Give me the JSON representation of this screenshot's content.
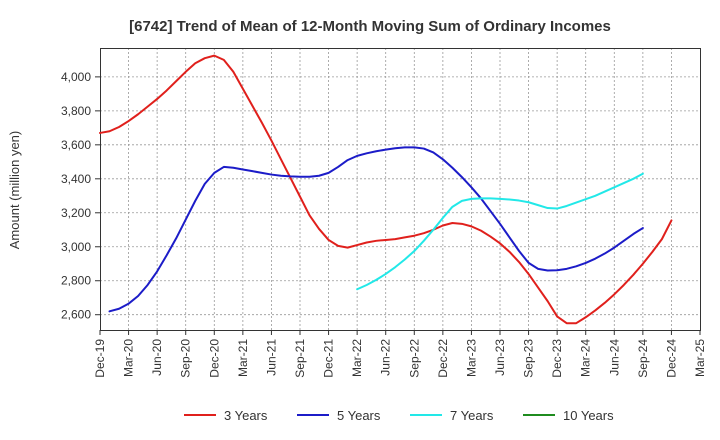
{
  "chart_data": {
    "type": "line",
    "title": "[6742]  Trend of Mean of 12-Month Moving Sum of Ordinary Incomes",
    "xlabel": "",
    "ylabel": "Amount (million yen)",
    "ylim": [
      2510,
      4170
    ],
    "yticks": [
      2600,
      2800,
      3000,
      3200,
      3400,
      3600,
      3800,
      4000
    ],
    "ytick_labels": [
      "2,600",
      "2,800",
      "3,000",
      "3,200",
      "3,400",
      "3,600",
      "3,800",
      "4,000"
    ],
    "xticks": [
      "Dec-19",
      "Mar-20",
      "Jun-20",
      "Sep-20",
      "Dec-20",
      "Mar-21",
      "Jun-21",
      "Sep-21",
      "Dec-21",
      "Mar-22",
      "Jun-22",
      "Sep-22",
      "Dec-22",
      "Mar-23",
      "Jun-23",
      "Sep-23",
      "Dec-23",
      "Mar-24",
      "Jun-24",
      "Sep-24",
      "Dec-24",
      "Mar-25"
    ],
    "grid": true,
    "legend_position": "bottom",
    "series": [
      {
        "name": "3 Years",
        "color": "#e0201c",
        "start_month": 0,
        "values": [
          3670,
          3680,
          3705,
          3740,
          3780,
          3825,
          3870,
          3920,
          3975,
          4030,
          4080,
          4110,
          4125,
          4100,
          4030,
          3930,
          3830,
          3730,
          3625,
          3515,
          3405,
          3295,
          3185,
          3105,
          3040,
          3005,
          2995,
          3010,
          3025,
          3035,
          3040,
          3045,
          3055,
          3065,
          3080,
          3100,
          3125,
          3140,
          3135,
          3120,
          3095,
          3060,
          3020,
          2970,
          2910,
          2840,
          2760,
          2680,
          2590,
          2550,
          2550,
          2585,
          2625,
          2670,
          2720,
          2775,
          2835,
          2900,
          2970,
          3045,
          3155
        ]
      },
      {
        "name": "5 Years",
        "color": "#1c1cc8",
        "start_month": 1,
        "values": [
          2620,
          2635,
          2665,
          2710,
          2775,
          2855,
          2950,
          3050,
          3160,
          3270,
          3370,
          3435,
          3470,
          3465,
          3455,
          3445,
          3435,
          3425,
          3418,
          3414,
          3412,
          3412,
          3418,
          3435,
          3470,
          3510,
          3535,
          3550,
          3562,
          3572,
          3580,
          3585,
          3585,
          3578,
          3555,
          3515,
          3465,
          3410,
          3350,
          3285,
          3210,
          3135,
          3055,
          2975,
          2905,
          2870,
          2860,
          2862,
          2870,
          2885,
          2905,
          2930,
          2960,
          2995,
          3035,
          3075,
          3110
        ]
      },
      {
        "name": "7 Years",
        "color": "#22e8e8",
        "start_month": 27,
        "values": [
          2750,
          2775,
          2805,
          2840,
          2880,
          2925,
          2975,
          3035,
          3100,
          3170,
          3235,
          3270,
          3282,
          3285,
          3285,
          3282,
          3278,
          3272,
          3262,
          3245,
          3228,
          3225,
          3240,
          3260,
          3280,
          3300,
          3325,
          3350,
          3375,
          3400,
          3430
        ]
      },
      {
        "name": "10 Years",
        "color": "#1f8c1f",
        "start_month": 0,
        "values": []
      }
    ]
  }
}
